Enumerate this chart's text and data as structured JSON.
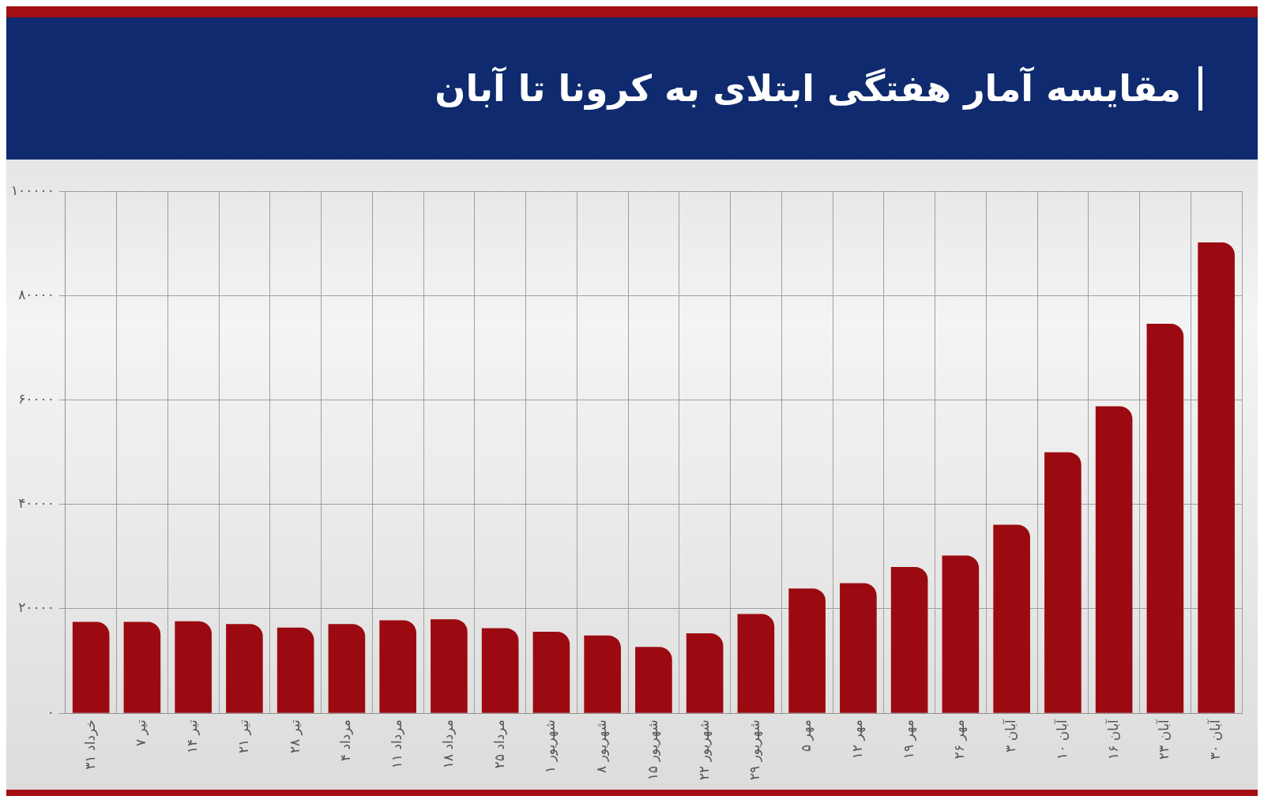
{
  "chart_data": {
    "type": "bar",
    "title": "مقایسه آمار هفتگی ابتلای به کرونا تا آبان",
    "categories": [
      "۳۱ خرداد",
      "۷ تیر",
      "۱۴ تیر",
      "۲۱ تیر",
      "۲۸ تیر",
      "۴ مرداد",
      "۱۱ مرداد",
      "۱۸ مرداد",
      "۲۵ مرداد",
      "۱ شهریور",
      "۸ شهریور",
      "۱۵ شهریور",
      "۲۲ شهریور",
      "۲۹ شهریور",
      "۵ مهر",
      "۱۲ مهر",
      "۱۹ مهر",
      "۲۶ مهر",
      "۳ آبان",
      "۱۰ آبان",
      "۱۶ آبان",
      "۲۳ آبان",
      "۳۰ آبان"
    ],
    "values": [
      17500,
      17500,
      17600,
      17100,
      16400,
      17100,
      17800,
      18000,
      16300,
      15600,
      14900,
      12700,
      15300,
      19000,
      23900,
      24900,
      28000,
      30200,
      36100,
      50000,
      58800,
      74600,
      90200
    ],
    "color": "#9b0a10",
    "ylim": [
      0,
      100000
    ],
    "yticks": [
      {
        "value": 0,
        "label": "۰"
      },
      {
        "value": 20000,
        "label": "۲۰۰۰۰"
      },
      {
        "value": 40000,
        "label": "۴۰۰۰۰"
      },
      {
        "value": 60000,
        "label": "۶۰۰۰۰"
      },
      {
        "value": 80000,
        "label": "۸۰۰۰۰"
      },
      {
        "value": 100000,
        "label": "۱۰۰۰۰۰"
      }
    ],
    "grid": true
  }
}
